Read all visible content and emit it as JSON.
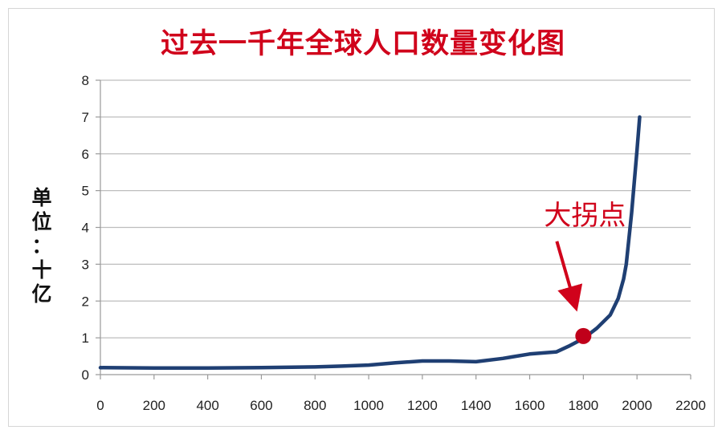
{
  "chart_data": {
    "type": "line",
    "title": "过去一千年全球人口数量变化图",
    "ylabel_chars": [
      "单",
      "位",
      "：",
      "十",
      "亿"
    ],
    "xlabel": "",
    "xlim": [
      0,
      2200
    ],
    "ylim": [
      0,
      8
    ],
    "x_ticks": [
      0,
      200,
      400,
      600,
      800,
      1000,
      1200,
      1400,
      1600,
      1800,
      2000,
      2200
    ],
    "y_ticks": [
      0,
      1,
      2,
      3,
      4,
      5,
      6,
      7,
      8
    ],
    "grid": "horizontal",
    "series": [
      {
        "color": "#1f3f73",
        "x": [
          0,
          200,
          400,
          600,
          800,
          900,
          1000,
          1100,
          1200,
          1300,
          1400,
          1500,
          1600,
          1700,
          1750,
          1800,
          1850,
          1900,
          1930,
          1950,
          1960,
          1980,
          2000,
          2010
        ],
        "y": [
          0.19,
          0.18,
          0.18,
          0.19,
          0.21,
          0.23,
          0.26,
          0.32,
          0.37,
          0.37,
          0.35,
          0.44,
          0.56,
          0.62,
          0.79,
          0.98,
          1.26,
          1.62,
          2.07,
          2.6,
          3.0,
          4.4,
          6.1,
          7.0
        ]
      }
    ],
    "annotation": {
      "text": "大拐点",
      "x": 1800,
      "y": 1.05,
      "marker_color": "#c0001a",
      "arrow_color": "#d0021b"
    }
  }
}
